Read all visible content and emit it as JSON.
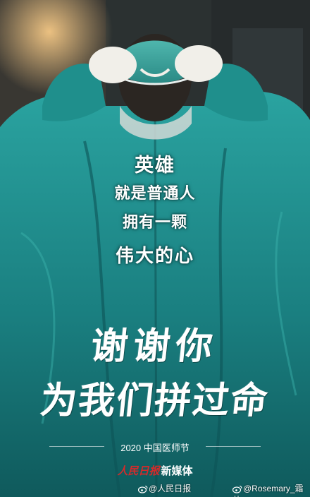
{
  "poster": {
    "headline": [
      "英雄",
      "就是普通人",
      "拥有一颗",
      "伟大的心"
    ],
    "brush_lines": [
      "谢谢你",
      "为我们拼过命"
    ],
    "festival": "2020 中国医师节",
    "media_logo": "人民日报",
    "media_name": "新媒体"
  },
  "watermarks": {
    "left": "@人民日报",
    "right": "@Rosemary_霜儿"
  },
  "colors": {
    "gown": "#1f8f8c",
    "gown_dark": "#0f5a5c",
    "logo_red": "#d62a2a"
  }
}
